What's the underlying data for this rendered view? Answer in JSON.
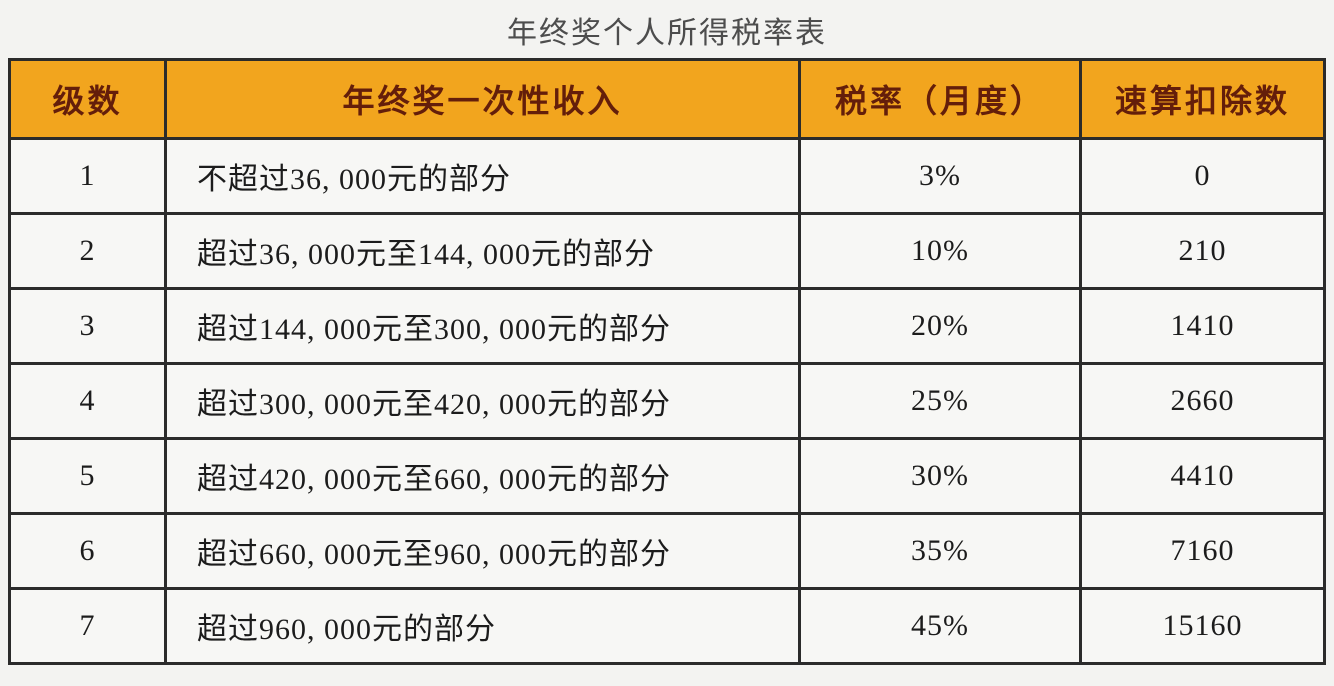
{
  "title": "年终奖个人所得税率表",
  "table": {
    "headers": [
      "级数",
      "年终奖一次性收入",
      "税率（月度）",
      "速算扣除数"
    ],
    "rows": [
      [
        "1",
        "不超过36, 000元的部分",
        "3%",
        "0"
      ],
      [
        "2",
        "超过36, 000元至144, 000元的部分",
        "10%",
        "210"
      ],
      [
        "3",
        "超过144, 000元至300, 000元的部分",
        "20%",
        "1410"
      ],
      [
        "4",
        "超过300, 000元至420, 000元的部分",
        "25%",
        "2660"
      ],
      [
        "5",
        "超过420, 000元至660, 000元的部分",
        "30%",
        "4410"
      ],
      [
        "6",
        "超过660, 000元至960, 000元的部分",
        "35%",
        "7160"
      ],
      [
        "7",
        "超过960, 000元的部分",
        "45%",
        "15160"
      ]
    ]
  },
  "colors": {
    "header_bg": "#f2a51e",
    "header_text": "#641e0a",
    "border": "#2b2b2b",
    "cell_bg": "#f7f7f5",
    "page_bg": "#f3f3f1",
    "title_text": "#4d4d4d",
    "body_text": "#1c1c1c"
  },
  "chart_data": {
    "type": "table",
    "title": "年终奖个人所得税率表",
    "columns": [
      "级数",
      "年终奖一次性收入",
      "税率（月度）",
      "速算扣除数"
    ],
    "rows": [
      {
        "级数": 1,
        "年终奖一次性收入": "不超过36,000元的部分",
        "税率（月度）": "3%",
        "速算扣除数": 0
      },
      {
        "级数": 2,
        "年终奖一次性收入": "超过36,000元至144,000元的部分",
        "税率（月度）": "10%",
        "速算扣除数": 210
      },
      {
        "级数": 3,
        "年终奖一次性收入": "超过144,000元至300,000元的部分",
        "税率（月度）": "20%",
        "速算扣除数": 1410
      },
      {
        "级数": 4,
        "年终奖一次性收入": "超过300,000元至420,000元的部分",
        "税率（月度）": "25%",
        "速算扣除数": 2660
      },
      {
        "级数": 5,
        "年终奖一次性收入": "超过420,000元至660,000元的部分",
        "税率（月度）": "30%",
        "速算扣除数": 4410
      },
      {
        "级数": 6,
        "年终奖一次性收入": "超过660,000元至960,000元的部分",
        "税率（月度）": "35%",
        "速算扣除数": 7160
      },
      {
        "级数": 7,
        "年终奖一次性收入": "超过960,000元的部分",
        "税率（月度）": "45%",
        "速算扣除数": 15160
      }
    ]
  }
}
